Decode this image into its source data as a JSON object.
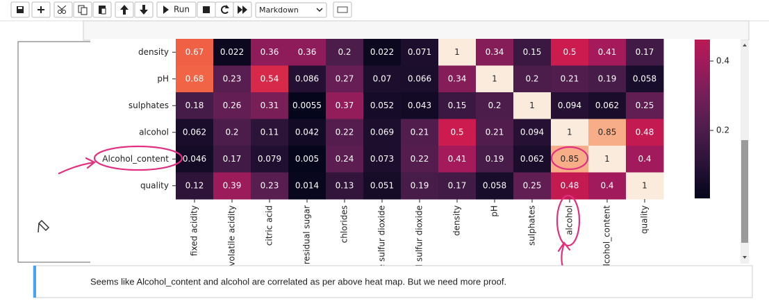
{
  "toolbar": {
    "run_label": "Run",
    "cell_type": "Markdown"
  },
  "heatmap": {
    "type": "heatmap",
    "rows": [
      "density",
      "pH",
      "sulphates",
      "alcohol",
      "Alcohol_content",
      "quality"
    ],
    "columns": [
      "fixed acidity",
      "volatile acidity",
      "citric acid",
      "residual sugar",
      "chlorides",
      "e sulfur dioxide",
      "l sulfur dioxide",
      "density",
      "pH",
      "sulphates",
      "alcohol",
      "lcohol_content",
      "quality"
    ],
    "values": [
      [
        0.67,
        0.022,
        0.36,
        0.36,
        0.2,
        0.022,
        0.071,
        1,
        0.34,
        0.15,
        0.5,
        0.41,
        0.17
      ],
      [
        0.68,
        0.23,
        0.54,
        0.086,
        0.27,
        0.07,
        0.066,
        0.34,
        1,
        0.2,
        0.21,
        0.19,
        0.058
      ],
      [
        0.18,
        0.26,
        0.31,
        0.0055,
        0.37,
        0.052,
        0.043,
        0.15,
        0.2,
        1,
        0.094,
        0.062,
        0.25
      ],
      [
        0.062,
        0.2,
        0.11,
        0.042,
        0.22,
        0.069,
        0.21,
        0.5,
        0.21,
        0.094,
        1,
        0.85,
        0.48
      ],
      [
        0.046,
        0.17,
        0.079,
        0.005,
        0.24,
        0.073,
        0.22,
        0.41,
        0.19,
        0.062,
        0.85,
        1,
        0.4
      ],
      [
        0.12,
        0.39,
        0.23,
        0.014,
        0.13,
        0.051,
        0.19,
        0.17,
        0.058,
        0.25,
        0.48,
        0.4,
        1
      ]
    ],
    "clim": [
      0,
      1
    ],
    "colorbar_ticks": [
      0.2,
      0.4
    ],
    "colormap": "rocket"
  },
  "markdown_cell": {
    "text": "Seems like Alcohol_content and alcohol are correlated as per above heat map. But we need more proof."
  }
}
